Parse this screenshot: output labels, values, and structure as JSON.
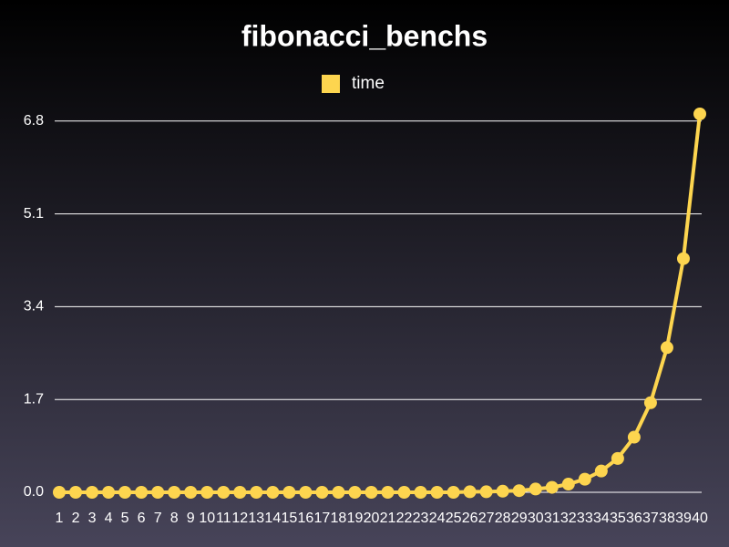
{
  "chart_data": {
    "type": "line",
    "title": "fibonacci_benchs",
    "categories": [
      "1",
      "2",
      "3",
      "4",
      "5",
      "6",
      "7",
      "8",
      "9",
      "10",
      "11",
      "12",
      "13",
      "14",
      "15",
      "16",
      "17",
      "18",
      "19",
      "20",
      "21",
      "22",
      "23",
      "24",
      "25",
      "26",
      "27",
      "28",
      "29",
      "30",
      "31",
      "32",
      "33",
      "34",
      "35",
      "36",
      "37",
      "38",
      "39",
      "40"
    ],
    "series": [
      {
        "name": "time",
        "color": "#fdd54f",
        "values": [
          0,
          0,
          0,
          0,
          0,
          0,
          0,
          0,
          0,
          0,
          0,
          0,
          0,
          0,
          0,
          0,
          0,
          0,
          0,
          0,
          0,
          0,
          0,
          0,
          0,
          0.01,
          0.01,
          0.02,
          0.03,
          0.06,
          0.09,
          0.15,
          0.24,
          0.39,
          0.62,
          1.01,
          1.64,
          2.65,
          4.28,
          6.93
        ]
      }
    ],
    "ylim": [
      0,
      6.93
    ],
    "yticks": [
      {
        "value": 0,
        "label": "0.0"
      },
      1.7,
      3.4,
      5.1,
      6.8
    ],
    "grid": true,
    "legend": "top"
  }
}
